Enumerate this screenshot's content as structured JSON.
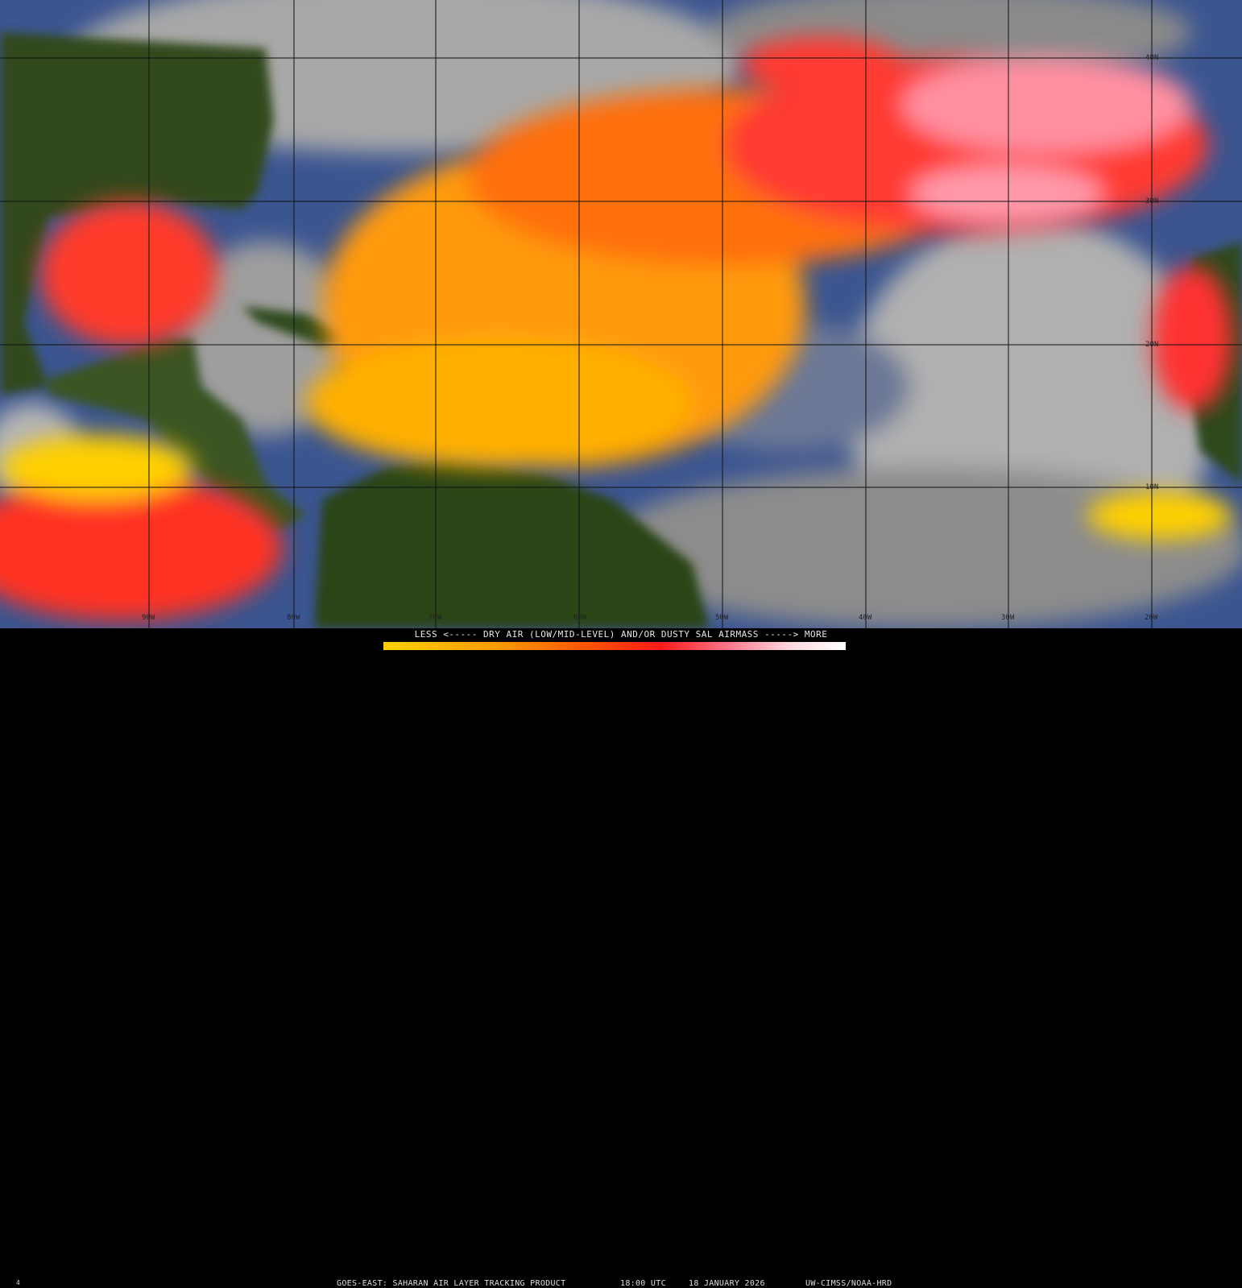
{
  "legend": {
    "title": "LESS <----- DRY AIR (LOW/MID-LEVEL) AND/OR DUSTY SAL AIRMASS -----> MORE",
    "colors": [
      "#ffd000",
      "#ff9a00",
      "#ff5000",
      "#ff1a1a",
      "#ff7a90",
      "#ffd8df",
      "#ffffff"
    ]
  },
  "caption": {
    "product": "GOES-EAST: SAHARAN AIR LAYER TRACKING PRODUCT",
    "time": "18:00 UTC",
    "date": "18 JANUARY 2026",
    "credit": "UW-CIMSS/NOAA-HRD"
  },
  "grid": {
    "longitudes": [
      "90W",
      "80W",
      "70W",
      "60W",
      "50W",
      "40W",
      "30W",
      "20W"
    ],
    "latitudes": [
      "40N",
      "30N",
      "20N",
      "10N"
    ]
  },
  "corner_mark": "4",
  "colors": {
    "land": "#2f4a1a",
    "cloud": "#9a9a9a",
    "ocean": "#3a5590",
    "sal_high": "#ff3030",
    "sal_low": "#ffd000"
  }
}
